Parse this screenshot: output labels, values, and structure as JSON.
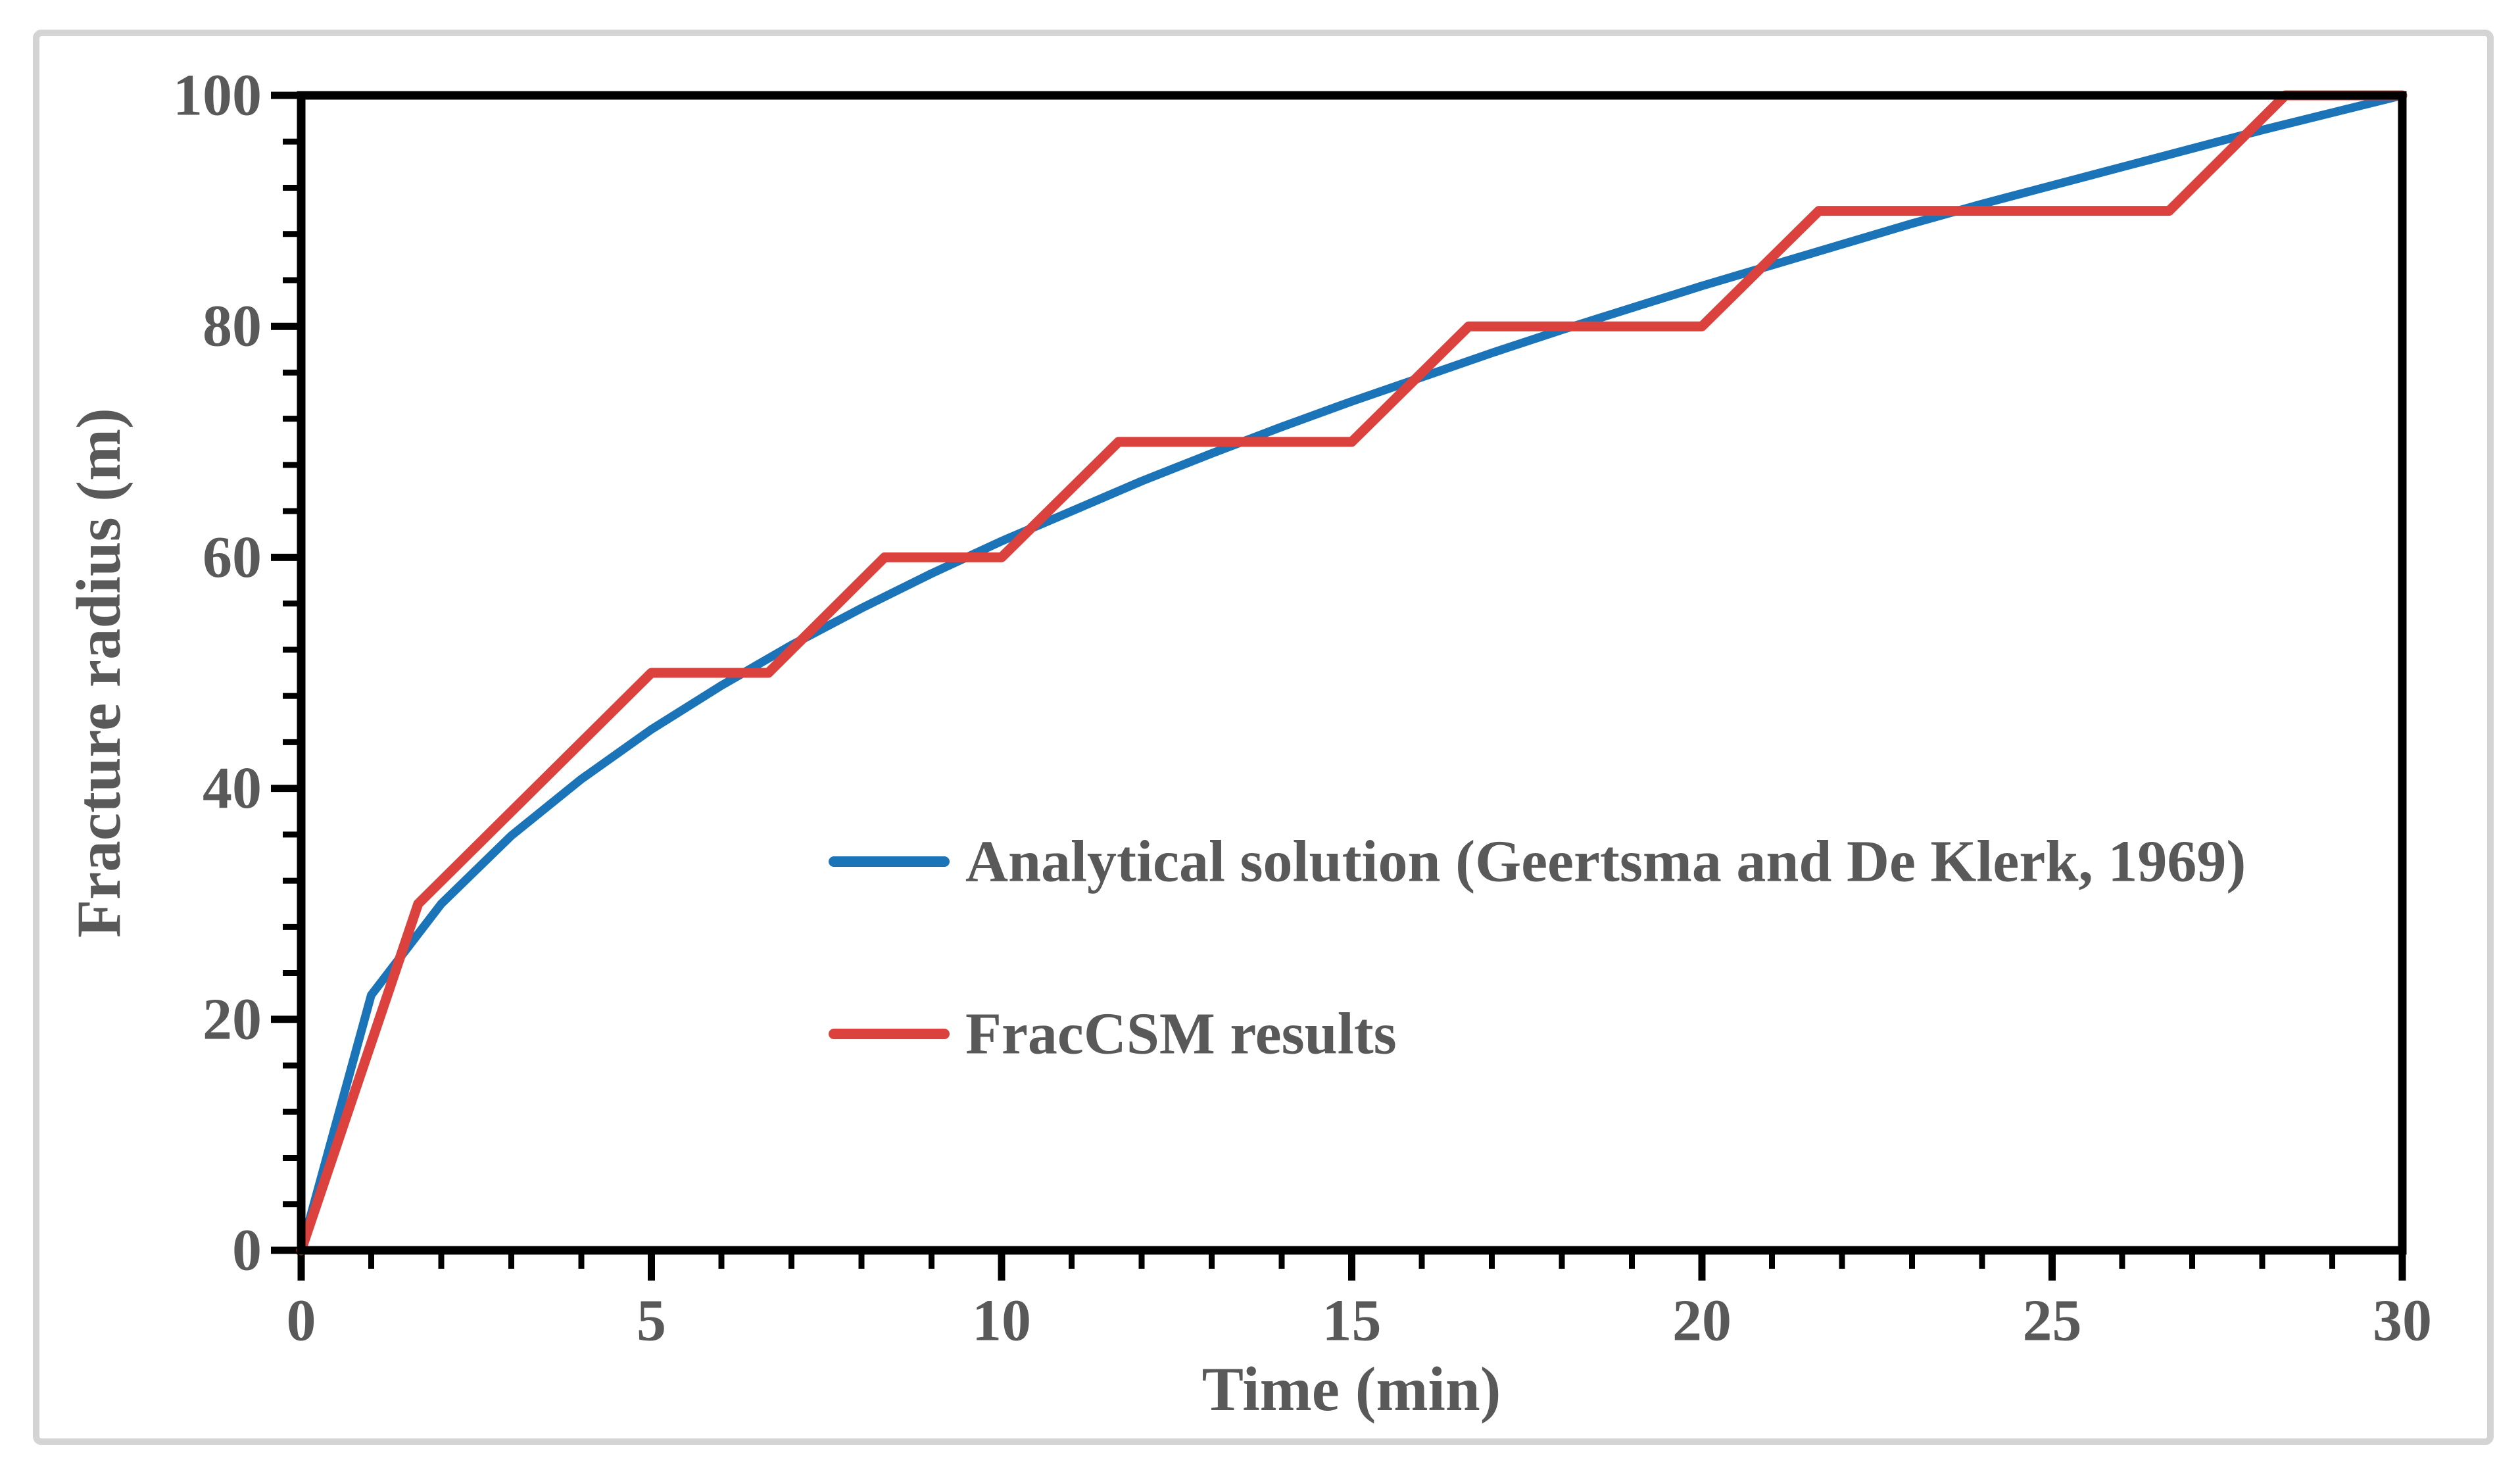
{
  "figure": {
    "background": "#ffffff",
    "border_color": "#d4d4d4"
  },
  "chart_data": {
    "type": "line",
    "title": "",
    "xlabel": "Time (min)",
    "ylabel": "Fracture radius (m)",
    "grid": false,
    "legend_position": "inside-middle-right",
    "text_color": "#595959",
    "axes": {
      "x": {
        "label": "Time (min)",
        "range": [
          0,
          30
        ],
        "major_ticks": [
          0,
          5,
          10,
          15,
          20,
          25,
          30
        ],
        "tick_labels": [
          "0",
          "5",
          "10",
          "15",
          "20",
          "25",
          "30"
        ],
        "minor_tick_step": 1
      },
      "y": {
        "label": "Fracture radius (m)",
        "range": [
          0,
          100
        ],
        "major_ticks": [
          0,
          20,
          40,
          60,
          80,
          100
        ],
        "tick_labels": [
          "0",
          "20",
          "40",
          "60",
          "80",
          "100"
        ],
        "minor_tick_step": 4
      }
    },
    "series": [
      {
        "name": "Analytical solution (Geertsma and De Klerk, 1969)",
        "color": "#1b74b8",
        "line_width": 13,
        "points": [
          [
            0,
            0
          ],
          [
            1,
            22.1
          ],
          [
            2,
            30.0
          ],
          [
            3,
            35.9
          ],
          [
            4,
            40.8
          ],
          [
            5,
            45.1
          ],
          [
            6,
            48.9
          ],
          [
            7,
            52.4
          ],
          [
            8,
            55.6
          ],
          [
            9,
            58.6
          ],
          [
            10,
            61.4
          ],
          [
            11,
            64.0
          ],
          [
            12,
            66.6
          ],
          [
            13,
            69.0
          ],
          [
            14,
            71.3
          ],
          [
            15,
            73.5
          ],
          [
            16,
            75.6
          ],
          [
            17,
            77.7
          ],
          [
            18,
            79.7
          ],
          [
            19,
            81.6
          ],
          [
            20,
            83.5
          ],
          [
            21,
            85.3
          ],
          [
            22,
            87.1
          ],
          [
            23,
            88.9
          ],
          [
            24,
            90.6
          ],
          [
            25,
            92.2
          ],
          [
            26,
            93.8
          ],
          [
            27,
            95.4
          ],
          [
            28,
            97.0
          ],
          [
            29,
            98.5
          ],
          [
            30,
            100
          ]
        ]
      },
      {
        "name": "FracCSM results",
        "color": "#dc423d",
        "line_width": 15,
        "points": [
          [
            0,
            0
          ],
          [
            1.67,
            30
          ],
          [
            5,
            50
          ],
          [
            6.67,
            50
          ],
          [
            8.33,
            60
          ],
          [
            10,
            60
          ],
          [
            11.67,
            70
          ],
          [
            15,
            70
          ],
          [
            16.67,
            80
          ],
          [
            20,
            80
          ],
          [
            21.67,
            90
          ],
          [
            26.67,
            90
          ],
          [
            28.33,
            100
          ],
          [
            30,
            100
          ]
        ]
      }
    ]
  }
}
